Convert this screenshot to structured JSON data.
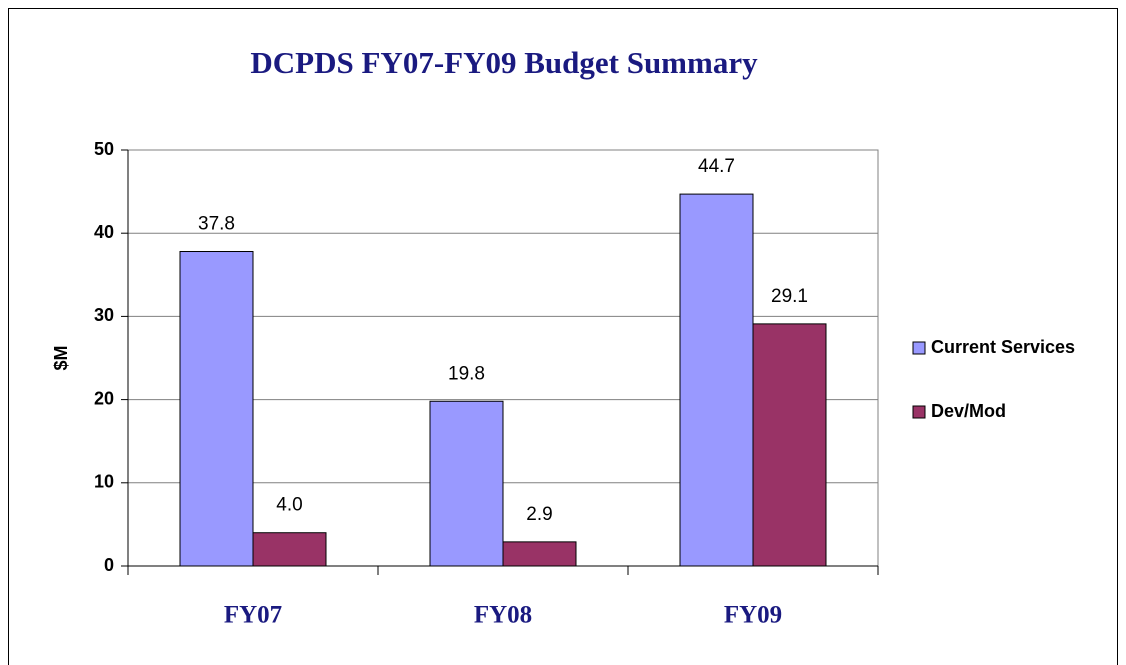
{
  "chart_data": {
    "type": "bar",
    "title": "DCPDS FY07-FY09 Budget Summary",
    "y_label": "$M",
    "categories": [
      "FY07",
      "FY08",
      "FY09"
    ],
    "series": [
      {
        "name": "Current Services",
        "color": "#9999ff",
        "values": [
          37.8,
          19.8,
          44.7
        ],
        "value_labels": [
          "37.8",
          "19.8",
          "44.7"
        ]
      },
      {
        "name": "Dev/Mod",
        "color": "#993366",
        "values": [
          4.0,
          2.9,
          29.1
        ],
        "value_labels": [
          "4.0",
          "2.9",
          "29.1"
        ]
      }
    ],
    "ylim": [
      0,
      50
    ],
    "yticks": [
      0,
      10,
      20,
      30,
      40,
      50
    ],
    "grid": true,
    "legend": "right"
  }
}
